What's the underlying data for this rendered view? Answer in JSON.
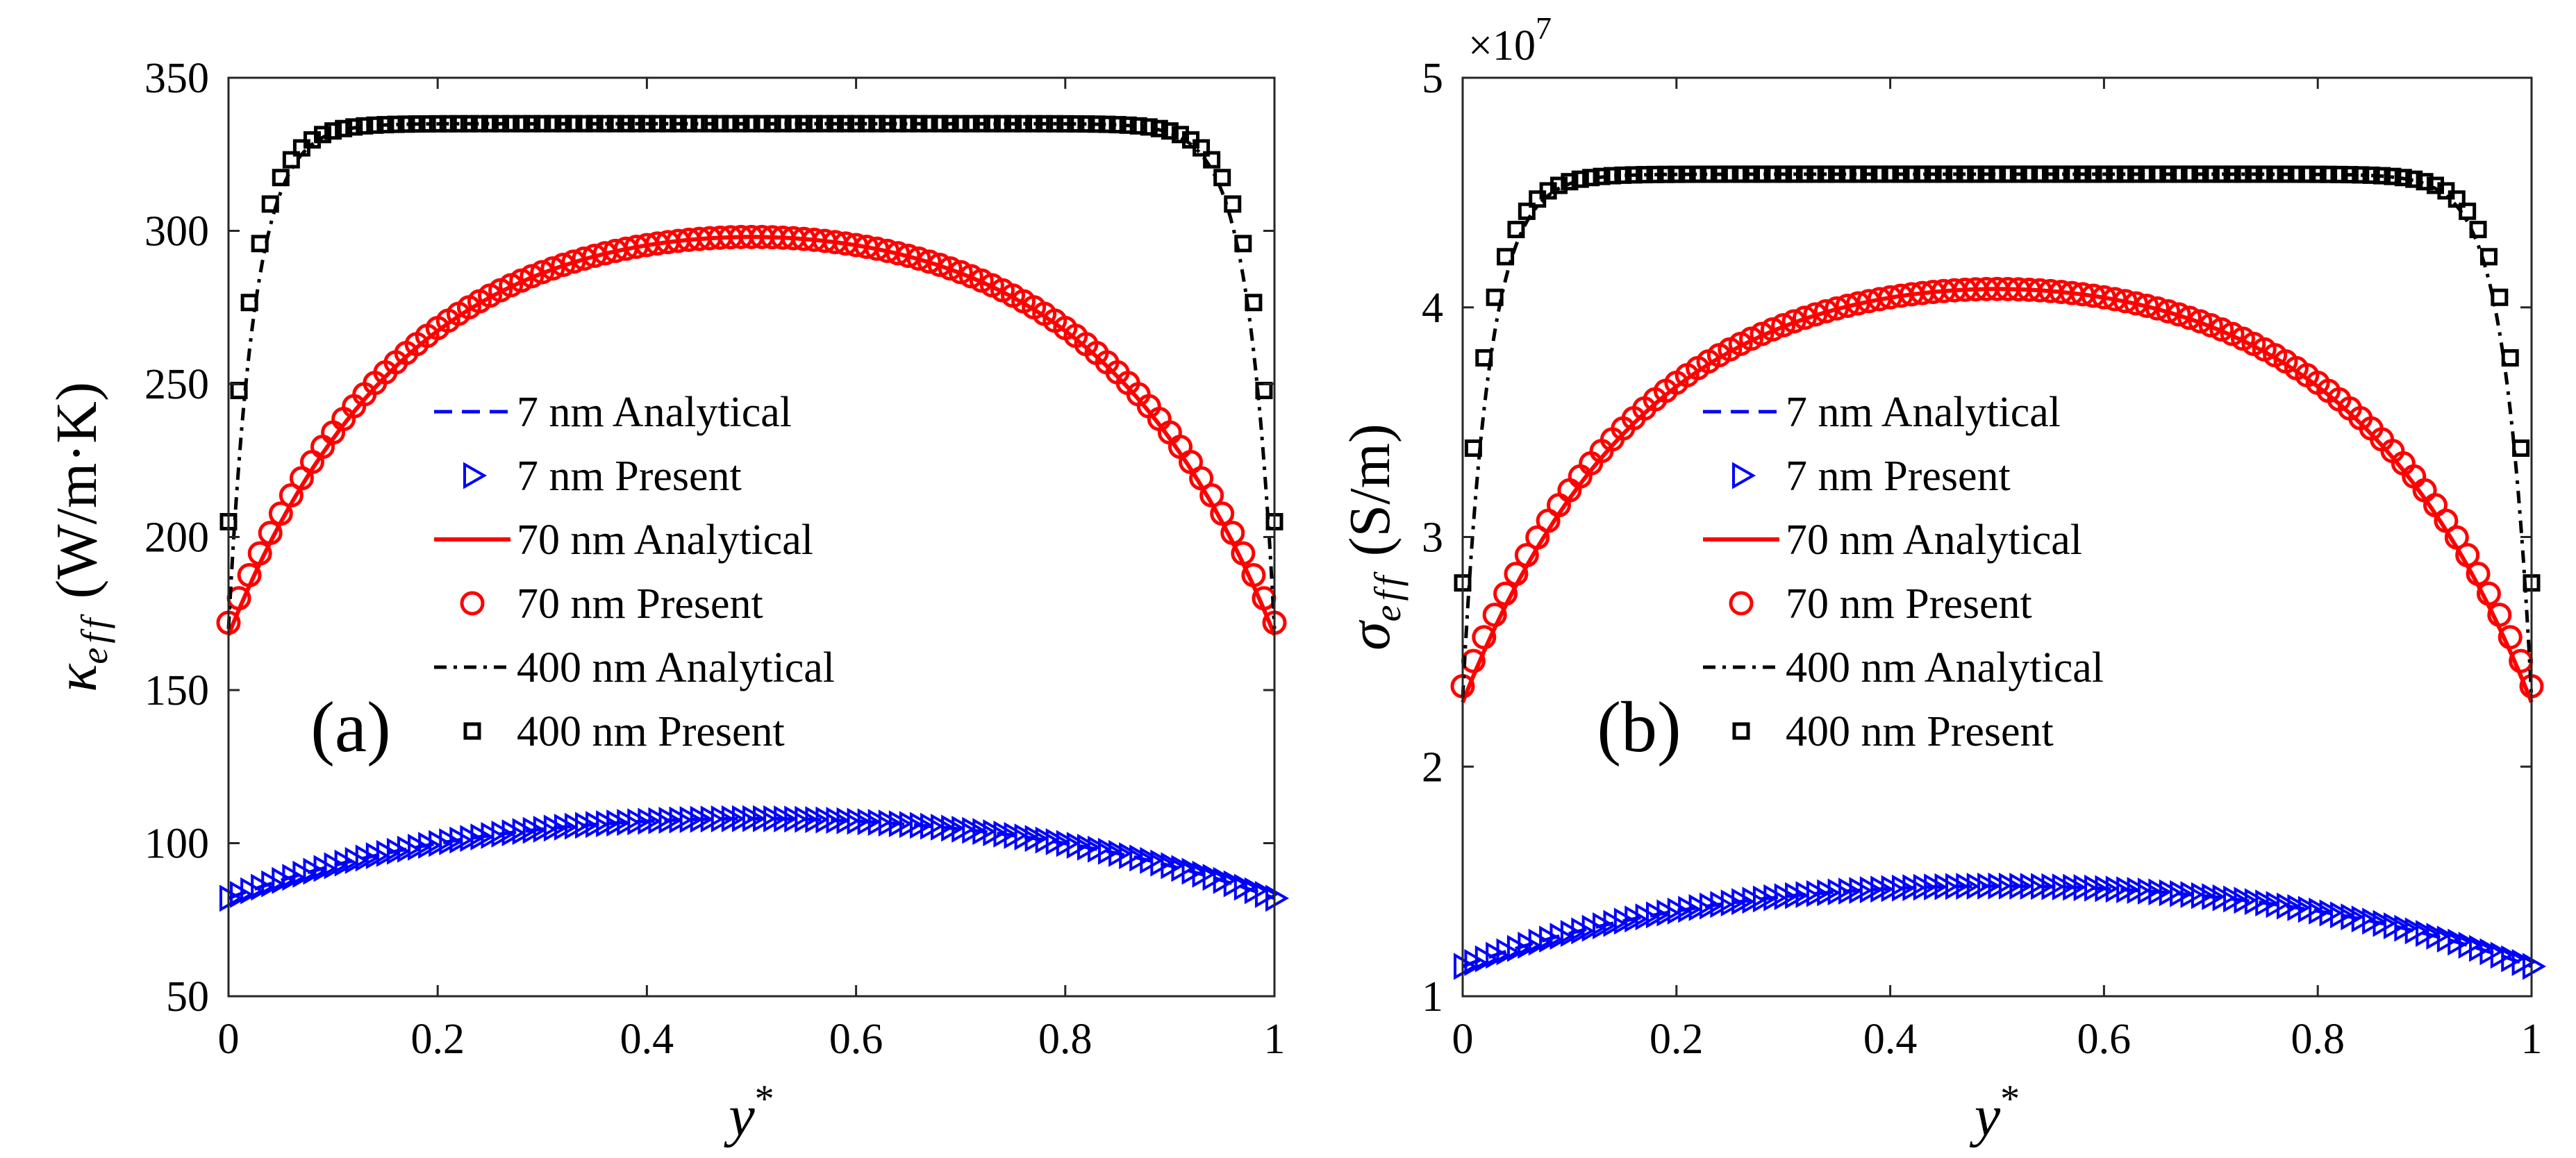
{
  "chart_data": [
    {
      "type": "line",
      "panel_label": "(a)",
      "xlabel_base": "y",
      "xlabel_sup": "*",
      "ylabel_symbol": "κ",
      "ylabel_sub": "eff",
      "ylabel_unit": "(W/m·K)",
      "xlim": [
        0,
        1
      ],
      "ylim": [
        50,
        350
      ],
      "xticks": [
        "0",
        "0.2",
        "0.4",
        "0.6",
        "0.8",
        "1"
      ],
      "yticks": [
        "50",
        "100",
        "150",
        "200",
        "250",
        "300",
        "350"
      ],
      "exponent_label": "",
      "grid": false,
      "legend_position": "center",
      "series": [
        {
          "name": "7 nm Analytical",
          "style": "dashed",
          "color": "#0000ff",
          "center": 108,
          "edge": 82,
          "knee": 0.3
        },
        {
          "name": "7 nm Present",
          "style": "triangle",
          "color": "#0000ff",
          "center": 108,
          "edge": 82,
          "knee": 0.3
        },
        {
          "name": "70 nm Analytical",
          "style": "solid",
          "color": "#ff0000",
          "center": 298,
          "edge": 168,
          "knee": 0.17
        },
        {
          "name": "70 nm Present",
          "style": "circle",
          "color": "#ff0000",
          "center": 298,
          "edge": 172,
          "knee": 0.17
        },
        {
          "name": "400 nm Analytical",
          "style": "dashdot",
          "color": "#000000",
          "center": 335,
          "edge": 170,
          "knee": 0.025
        },
        {
          "name": "400 nm Present",
          "style": "square",
          "color": "#000000",
          "center": 335,
          "edge": 205,
          "knee": 0.025
        }
      ]
    },
    {
      "type": "line",
      "panel_label": "(b)",
      "xlabel_base": "y",
      "xlabel_sup": "*",
      "ylabel_symbol": "σ",
      "ylabel_sub": "eff",
      "ylabel_unit": "(S/m)",
      "xlim": [
        0,
        1
      ],
      "ylim": [
        1,
        5
      ],
      "xticks": [
        "0",
        "0.2",
        "0.4",
        "0.6",
        "0.8",
        "1"
      ],
      "yticks": [
        "1",
        "2",
        "3",
        "4",
        "5"
      ],
      "exponent_label": "×10",
      "exponent_power": "7",
      "grid": false,
      "legend_position": "center",
      "series": [
        {
          "name": "7 nm Analytical",
          "style": "dashed",
          "color": "#0000ff",
          "center": 1.48,
          "edge": 1.13,
          "knee": 0.3
        },
        {
          "name": "7 nm Present",
          "style": "triangle",
          "color": "#0000ff",
          "center": 1.48,
          "edge": 1.13,
          "knee": 0.3
        },
        {
          "name": "70 nm Analytical",
          "style": "solid",
          "color": "#ff0000",
          "center": 4.08,
          "edge": 2.28,
          "knee": 0.17
        },
        {
          "name": "70 nm Present",
          "style": "circle",
          "color": "#ff0000",
          "center": 4.08,
          "edge": 2.35,
          "knee": 0.17
        },
        {
          "name": "400 nm Analytical",
          "style": "dashdot",
          "color": "#000000",
          "center": 4.58,
          "edge": 2.3,
          "knee": 0.025
        },
        {
          "name": "400 nm Present",
          "style": "square",
          "color": "#000000",
          "center": 4.58,
          "edge": 2.8,
          "knee": 0.025
        }
      ]
    }
  ]
}
